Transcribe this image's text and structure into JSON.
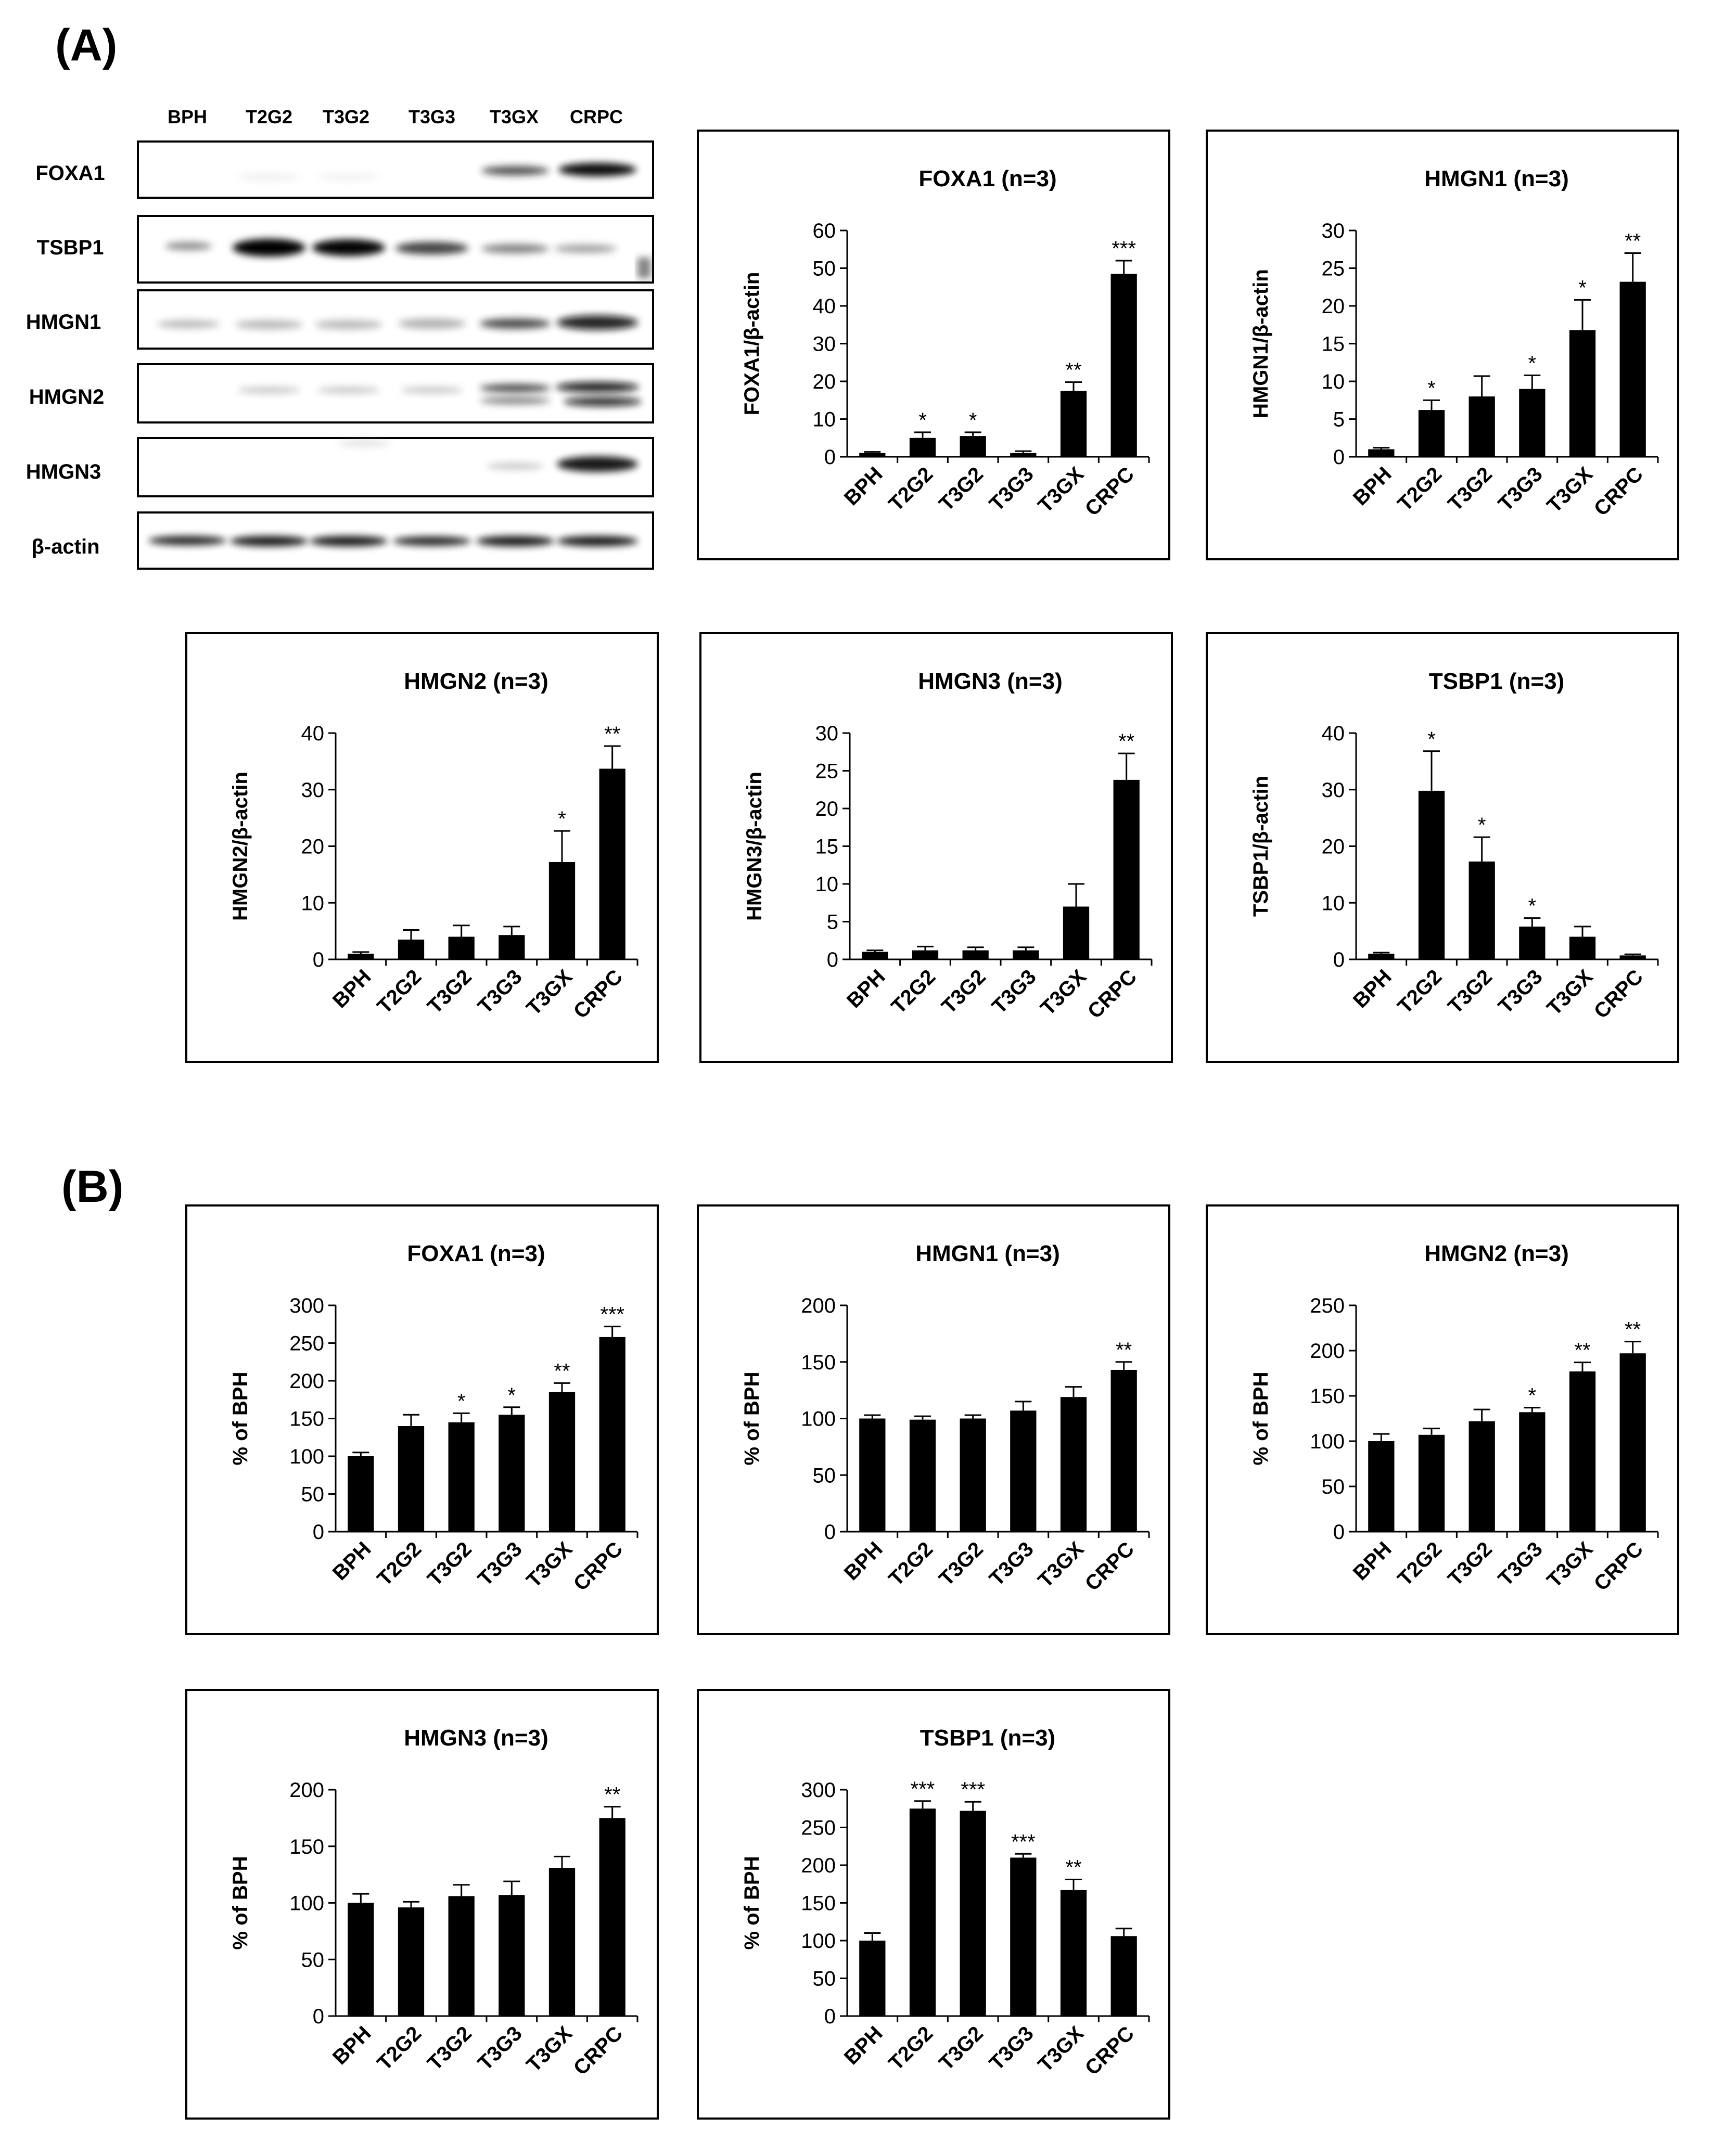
{
  "panel_labels": {
    "a": "(A)",
    "b": "(B)"
  },
  "western_blot": {
    "lanes": [
      "BPH",
      "T2G2",
      "T3G2",
      "T3G3",
      "T3GX",
      "CRPC"
    ],
    "proteins": [
      "FOXA1",
      "TSBP1",
      "HMGN1",
      "HMGN2",
      "HMGN3",
      "β-actin"
    ]
  },
  "chart_data": [
    {
      "id": "a-foxa1",
      "type": "bar",
      "title": "FOXA1 (n=3)",
      "ylabel": "FOXA1/β-actin",
      "xlabel": "",
      "categories": [
        "BPH",
        "T2G2",
        "T3G2",
        "T3G3",
        "T3GX",
        "CRPC"
      ],
      "values": [
        1,
        5,
        5.5,
        1,
        17.5,
        48.5
      ],
      "errors": [
        0.3,
        1.5,
        1,
        0.5,
        2.3,
        3.5
      ],
      "significance": [
        "",
        "*",
        "*",
        "",
        "**",
        "***"
      ],
      "ylim": [
        0,
        60
      ],
      "ticks": [
        0,
        10,
        20,
        30,
        40,
        50,
        60
      ]
    },
    {
      "id": "a-hmgn1",
      "type": "bar",
      "title": "HMGN1 (n=3)",
      "ylabel": "HMGN1/β-actin",
      "xlabel": "",
      "categories": [
        "BPH",
        "T2G2",
        "T3G2",
        "T3G3",
        "T3GX",
        "CRPC"
      ],
      "values": [
        1,
        6.2,
        8,
        9,
        16.8,
        23.2
      ],
      "errors": [
        0.2,
        1.3,
        2.7,
        1.8,
        4,
        3.8
      ],
      "significance": [
        "",
        "*",
        "",
        "*",
        "*",
        "**"
      ],
      "ylim": [
        0,
        30
      ],
      "ticks": [
        0,
        5,
        10,
        15,
        20,
        25,
        30
      ]
    },
    {
      "id": "a-hmgn2",
      "type": "bar",
      "title": "HMGN2 (n=3)",
      "ylabel": "HMGN2/β-actin",
      "xlabel": "",
      "categories": [
        "BPH",
        "T2G2",
        "T3G2",
        "T3G3",
        "T3GX",
        "CRPC"
      ],
      "values": [
        1,
        3.5,
        4,
        4.3,
        17.2,
        33.7
      ],
      "errors": [
        0.3,
        1.7,
        2,
        1.5,
        5.5,
        4
      ],
      "significance": [
        "",
        "",
        "",
        "",
        "*",
        "**"
      ],
      "ylim": [
        0,
        40
      ],
      "ticks": [
        0,
        10,
        20,
        30,
        40
      ]
    },
    {
      "id": "a-hmgn3",
      "type": "bar",
      "title": "HMGN3 (n=3)",
      "ylabel": "HMGN3/β-actin",
      "xlabel": "",
      "categories": [
        "BPH",
        "T2G2",
        "T3G2",
        "T3G3",
        "T3GX",
        "CRPC"
      ],
      "values": [
        1,
        1.2,
        1.2,
        1.2,
        7,
        23.8
      ],
      "errors": [
        0.2,
        0.5,
        0.4,
        0.4,
        3,
        3.5
      ],
      "significance": [
        "",
        "",
        "",
        "",
        "",
        "**"
      ],
      "ylim": [
        0,
        30
      ],
      "ticks": [
        0,
        5,
        10,
        15,
        20,
        25,
        30
      ]
    },
    {
      "id": "a-tsbp1",
      "type": "bar",
      "title": "TSBP1 (n=3)",
      "ylabel": "TSBP1/β-actin",
      "xlabel": "",
      "categories": [
        "BPH",
        "T2G2",
        "T3G2",
        "T3G3",
        "T3GX",
        "CRPC"
      ],
      "values": [
        1,
        29.8,
        17.3,
        5.8,
        4,
        0.7
      ],
      "errors": [
        0.2,
        7,
        4.3,
        1.5,
        1.8,
        0.2
      ],
      "significance": [
        "",
        "*",
        "*",
        "*",
        "",
        ""
      ],
      "ylim": [
        0,
        40
      ],
      "ticks": [
        0,
        10,
        20,
        30,
        40
      ]
    },
    {
      "id": "b-foxa1",
      "type": "bar",
      "title": "FOXA1 (n=3)",
      "ylabel": "% of BPH",
      "xlabel": "",
      "categories": [
        "BPH",
        "T2G2",
        "T3G2",
        "T3G3",
        "T3GX",
        "CRPC"
      ],
      "values": [
        100,
        140,
        145,
        155,
        185,
        258
      ],
      "errors": [
        5,
        15,
        12,
        10,
        12,
        14
      ],
      "significance": [
        "",
        "",
        "*",
        "*",
        "**",
        "***"
      ],
      "ylim": [
        0,
        300
      ],
      "ticks": [
        0,
        50,
        100,
        150,
        200,
        250,
        300
      ]
    },
    {
      "id": "b-hmgn1",
      "type": "bar",
      "title": "HMGN1 (n=3)",
      "ylabel": "% of BPH",
      "xlabel": "",
      "categories": [
        "BPH",
        "T2G2",
        "T3G2",
        "T3G3",
        "T3GX",
        "CRPC"
      ],
      "values": [
        100,
        99,
        100,
        107,
        119,
        143
      ],
      "errors": [
        3,
        3,
        3,
        8,
        9,
        7
      ],
      "significance": [
        "",
        "",
        "",
        "",
        "",
        "**"
      ],
      "ylim": [
        0,
        200
      ],
      "ticks": [
        0,
        50,
        100,
        150,
        200
      ]
    },
    {
      "id": "b-hmgn2",
      "type": "bar",
      "title": "HMGN2 (n=3)",
      "ylabel": "% of BPH",
      "xlabel": "",
      "categories": [
        "BPH",
        "T2G2",
        "T3G2",
        "T3G3",
        "T3GX",
        "CRPC"
      ],
      "values": [
        100,
        107,
        122,
        132,
        177,
        197
      ],
      "errors": [
        8,
        7,
        13,
        5,
        10,
        13
      ],
      "significance": [
        "",
        "",
        "",
        "*",
        "**",
        "**"
      ],
      "ylim": [
        0,
        250
      ],
      "ticks": [
        0,
        50,
        100,
        150,
        200,
        250
      ]
    },
    {
      "id": "b-hmgn3",
      "type": "bar",
      "title": "HMGN3 (n=3)",
      "ylabel": "% of BPH",
      "xlabel": "",
      "categories": [
        "BPH",
        "T2G2",
        "T3G2",
        "T3G3",
        "T3GX",
        "CRPC"
      ],
      "values": [
        100,
        96,
        106,
        107,
        131,
        175
      ],
      "errors": [
        8,
        5,
        10,
        12,
        10,
        10
      ],
      "significance": [
        "",
        "",
        "",
        "",
        "",
        "**"
      ],
      "ylim": [
        0,
        200
      ],
      "ticks": [
        0,
        50,
        100,
        150,
        200
      ]
    },
    {
      "id": "b-tsbp1",
      "type": "bar",
      "title": "TSBP1 (n=3)",
      "ylabel": "% of BPH",
      "xlabel": "",
      "categories": [
        "BPH",
        "T2G2",
        "T3G2",
        "T3G3",
        "T3GX",
        "CRPC"
      ],
      "values": [
        100,
        275,
        272,
        210,
        167,
        106
      ],
      "errors": [
        10,
        10,
        12,
        5,
        14,
        10
      ],
      "significance": [
        "",
        "***",
        "***",
        "***",
        "**",
        ""
      ],
      "ylim": [
        0,
        300
      ],
      "ticks": [
        0,
        50,
        100,
        150,
        200,
        250,
        300
      ]
    }
  ]
}
